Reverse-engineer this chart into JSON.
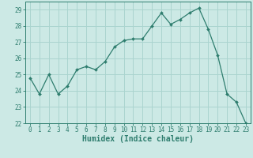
{
  "x": [
    0,
    1,
    2,
    3,
    4,
    5,
    6,
    7,
    8,
    9,
    10,
    11,
    12,
    13,
    14,
    15,
    16,
    17,
    18,
    19,
    20,
    21,
    22,
    23
  ],
  "y": [
    24.8,
    23.8,
    25.0,
    23.8,
    24.3,
    25.3,
    25.5,
    25.3,
    25.8,
    26.7,
    27.1,
    27.2,
    27.2,
    28.0,
    28.8,
    28.1,
    28.4,
    28.8,
    29.1,
    27.8,
    26.2,
    23.8,
    23.3,
    22.0
  ],
  "line_color": "#2e7d6e",
  "marker": "D",
  "marker_size": 2.0,
  "bg_color": "#cce9e5",
  "grid_color": "#aad4cf",
  "xlabel": "Humidex (Indice chaleur)",
  "ylim": [
    22,
    29.5
  ],
  "xlim": [
    -0.5,
    23.5
  ],
  "yticks": [
    22,
    23,
    24,
    25,
    26,
    27,
    28,
    29
  ],
  "xticks": [
    0,
    1,
    2,
    3,
    4,
    5,
    6,
    7,
    8,
    9,
    10,
    11,
    12,
    13,
    14,
    15,
    16,
    17,
    18,
    19,
    20,
    21,
    22,
    23
  ],
  "tick_color": "#2e7d6e",
  "tick_fontsize": 5.5,
  "xlabel_fontsize": 7.0
}
